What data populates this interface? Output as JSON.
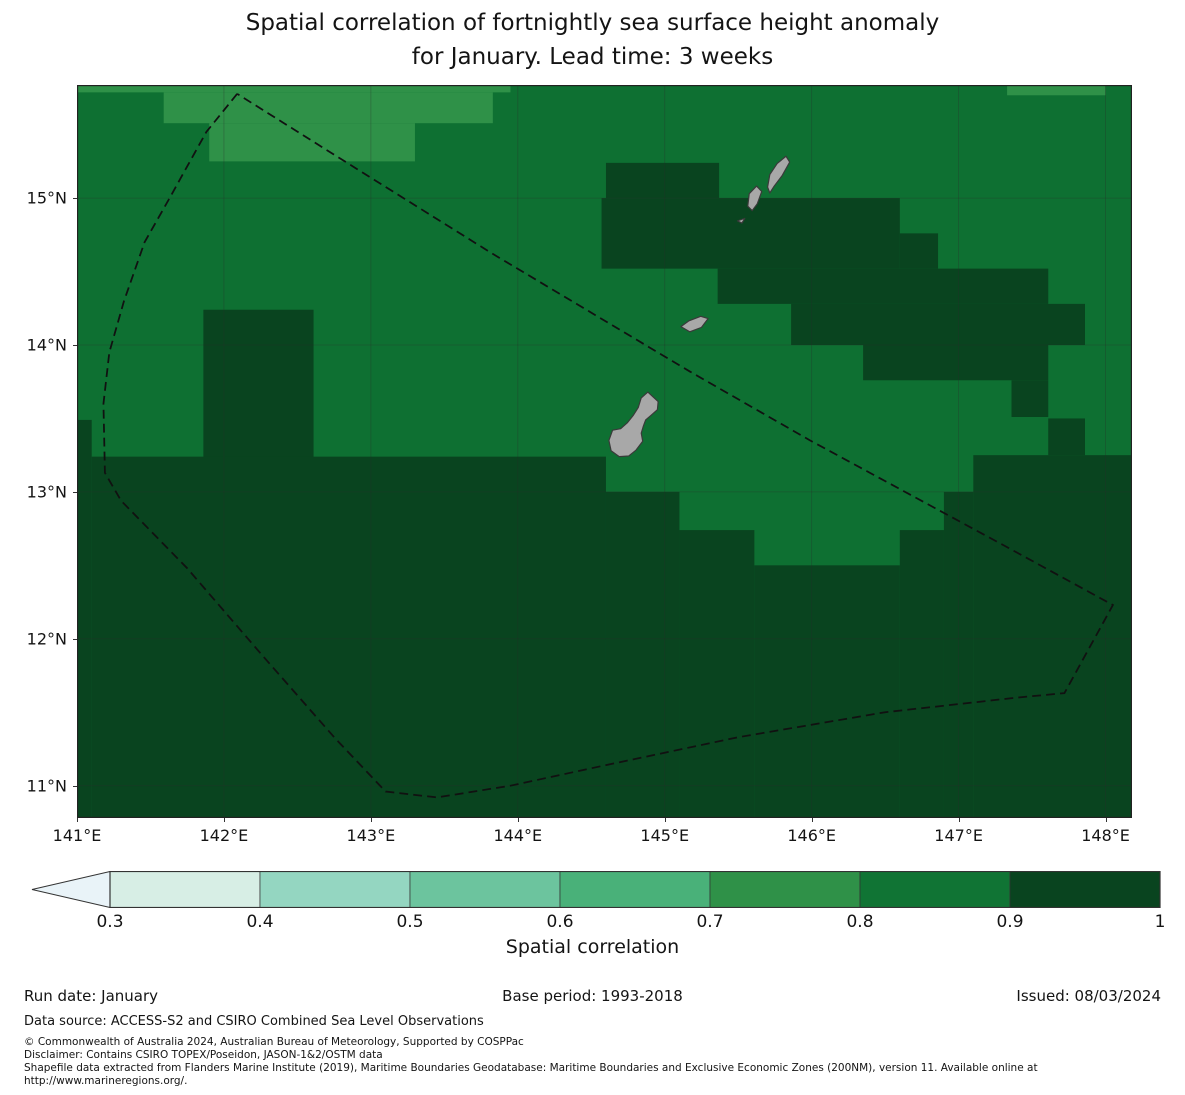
{
  "title": {
    "line1": "Spatial correlation of fortnightly sea surface height anomaly",
    "line2": "for January. Lead time: 3 weeks"
  },
  "chart_data": {
    "type": "heatmap",
    "subtype": "filled-contour-geographic-map",
    "title": "Spatial correlation of fortnightly sea surface height anomaly for January. Lead time: 3 weeks",
    "lon_range": [
      141.0,
      148.18
    ],
    "lat_range": [
      10.78,
      15.77
    ],
    "grid": true,
    "gridline_lons": [
      142,
      143,
      144,
      145,
      146,
      147,
      148
    ],
    "gridline_lats": [
      11,
      12,
      13,
      14,
      15
    ],
    "x_ticks": [
      {
        "lon": 141,
        "label": "141°E"
      },
      {
        "lon": 142,
        "label": "142°E"
      },
      {
        "lon": 143,
        "label": "143°E"
      },
      {
        "lon": 144,
        "label": "144°E"
      },
      {
        "lon": 145,
        "label": "145°E"
      },
      {
        "lon": 146,
        "label": "146°E"
      },
      {
        "lon": 147,
        "label": "147°E"
      },
      {
        "lon": 148,
        "label": "148°E"
      }
    ],
    "y_ticks": [
      {
        "lat": 15,
        "label": "15°N"
      },
      {
        "lat": 14,
        "label": "14°N"
      },
      {
        "lat": 13,
        "label": "13°N"
      },
      {
        "lat": 12,
        "label": "12°N"
      },
      {
        "lat": 11,
        "label": "11°N"
      }
    ],
    "base_fill": {
      "level": "0.8-0.9",
      "color": "#0e7032"
    },
    "regions": [
      {
        "level": "0.7-0.8",
        "color": "#2f9148",
        "rects": [
          [
            141.0,
            15.72,
            143.95,
            15.77
          ],
          [
            141.59,
            15.51,
            143.83,
            15.72
          ],
          [
            141.9,
            15.25,
            143.3,
            15.51
          ],
          [
            147.33,
            15.7,
            148.0,
            15.77
          ]
        ]
      },
      {
        "level": "0.9-1.0",
        "color": "#09441f",
        "rects": [
          [
            144.6,
            15.0,
            145.37,
            15.24
          ],
          [
            144.57,
            14.52,
            146.6,
            15.0
          ],
          [
            146.6,
            14.52,
            146.86,
            14.76
          ],
          [
            145.36,
            14.28,
            147.61,
            14.52
          ],
          [
            145.86,
            14.0,
            147.86,
            14.28
          ],
          [
            146.35,
            13.76,
            147.61,
            14.0
          ],
          [
            147.36,
            13.51,
            147.61,
            13.76
          ],
          [
            147.61,
            13.25,
            147.86,
            13.5
          ],
          [
            141.86,
            12.9,
            142.61,
            14.24
          ],
          [
            141.0,
            10.78,
            141.1,
            13.49
          ],
          [
            141.1,
            10.78,
            144.6,
            13.24
          ],
          [
            144.6,
            10.78,
            145.1,
            13.0
          ],
          [
            145.1,
            10.78,
            145.61,
            12.74
          ],
          [
            145.61,
            10.78,
            146.6,
            12.5
          ],
          [
            146.6,
            10.78,
            146.9,
            12.74
          ],
          [
            146.9,
            10.78,
            147.1,
            13.0
          ],
          [
            147.1,
            10.78,
            148.18,
            13.25
          ]
        ]
      }
    ],
    "islands": [
      {
        "name": "Guam",
        "points": [
          [
            144.885,
            13.68
          ],
          [
            144.955,
            13.615
          ],
          [
            144.95,
            13.56
          ],
          [
            144.905,
            13.52
          ],
          [
            144.87,
            13.49
          ],
          [
            144.855,
            13.45
          ],
          [
            144.84,
            13.4
          ],
          [
            144.85,
            13.345
          ],
          [
            144.805,
            13.285
          ],
          [
            144.755,
            13.245
          ],
          [
            144.69,
            13.24
          ],
          [
            144.635,
            13.28
          ],
          [
            144.62,
            13.35
          ],
          [
            144.645,
            13.42
          ],
          [
            144.7,
            13.43
          ],
          [
            144.745,
            13.47
          ],
          [
            144.785,
            13.52
          ],
          [
            144.82,
            13.575
          ],
          [
            144.84,
            13.64
          ]
        ]
      },
      {
        "name": "Rota",
        "points": [
          [
            145.11,
            14.125
          ],
          [
            145.165,
            14.165
          ],
          [
            145.245,
            14.195
          ],
          [
            145.295,
            14.18
          ],
          [
            145.25,
            14.12
          ],
          [
            145.17,
            14.09
          ]
        ]
      },
      {
        "name": "Aguijan",
        "points": [
          [
            145.495,
            14.845
          ],
          [
            145.545,
            14.862
          ],
          [
            145.525,
            14.83
          ]
        ]
      },
      {
        "name": "Tinian",
        "points": [
          [
            145.565,
            14.945
          ],
          [
            145.575,
            15.03
          ],
          [
            145.625,
            15.082
          ],
          [
            145.66,
            15.045
          ],
          [
            145.63,
            14.962
          ],
          [
            145.595,
            14.915
          ]
        ]
      },
      {
        "name": "Saipan",
        "points": [
          [
            145.7,
            15.075
          ],
          [
            145.715,
            15.16
          ],
          [
            145.765,
            15.235
          ],
          [
            145.825,
            15.285
          ],
          [
            145.85,
            15.245
          ],
          [
            145.8,
            15.155
          ],
          [
            145.745,
            15.082
          ],
          [
            145.715,
            15.035
          ]
        ]
      }
    ],
    "island_style": {
      "fill": "#a8a8a8",
      "stroke": "#3a3a3a"
    },
    "eez_boundary": {
      "name": "Exclusive Economic Zone boundary (dashed)",
      "color": "#111111",
      "points": [
        [
          142.09,
          15.71
        ],
        [
          141.88,
          15.45
        ],
        [
          141.63,
          15.0
        ],
        [
          141.46,
          14.7
        ],
        [
          141.32,
          14.3
        ],
        [
          141.22,
          13.95
        ],
        [
          141.18,
          13.6
        ],
        [
          141.19,
          13.13
        ],
        [
          141.3,
          12.94
        ],
        [
          141.75,
          12.48
        ],
        [
          142.25,
          11.9
        ],
        [
          142.75,
          11.33
        ],
        [
          143.1,
          10.96
        ],
        [
          143.45,
          10.92
        ],
        [
          143.95,
          11.0
        ],
        [
          144.6,
          11.14
        ],
        [
          145.5,
          11.33
        ],
        [
          146.5,
          11.5
        ],
        [
          147.4,
          11.6
        ],
        [
          147.72,
          11.63
        ],
        [
          148.05,
          12.23
        ],
        [
          147.3,
          12.64
        ],
        [
          145.99,
          13.35
        ],
        [
          145.17,
          13.82
        ],
        [
          143.83,
          14.62
        ],
        [
          142.95,
          15.17
        ],
        [
          142.09,
          15.71
        ]
      ]
    },
    "colorbar": {
      "label": "Spatial correlation",
      "orientation": "horizontal",
      "extend": "min",
      "under_color": "#e9f3f8",
      "tick_labels": [
        "0.3",
        "0.4",
        "0.5",
        "0.6",
        "0.7",
        "0.8",
        "0.9",
        "1"
      ],
      "segments": [
        {
          "range": "0.3-0.4",
          "color": "#d7eee5"
        },
        {
          "range": "0.4-0.5",
          "color": "#94d6c1"
        },
        {
          "range": "0.5-0.6",
          "color": "#6cc49e"
        },
        {
          "range": "0.6-0.7",
          "color": "#49b179"
        },
        {
          "range": "0.7-0.8",
          "color": "#2f9148"
        },
        {
          "range": "0.8-0.9",
          "color": "#107434"
        },
        {
          "range": "0.9-1.0",
          "color": "#09441f"
        }
      ]
    }
  },
  "footer": {
    "run_date": "Run date: January",
    "base_period": "Base period: 1993-2018",
    "issued": "Issued: 08/03/2024",
    "data_source": "Data source: ACCESS-S2 and CSIRO Combined Sea Level Observations",
    "copyright": "© Commonwealth of Australia 2024, Australian Bureau of Meteorology, Supported by COSPPac",
    "disclaimer": "Disclaimer: Contains CSIRO TOPEX/Poseidon, JASON-1&2/OSTM data",
    "shapefile": "Shapefile data extracted from Flanders Marine Institute (2019), Maritime Boundaries Geodatabase: Maritime Boundaries and Exclusive Economic Zones (200NM), version 11. Available online at http://www.marineregions.org/."
  }
}
